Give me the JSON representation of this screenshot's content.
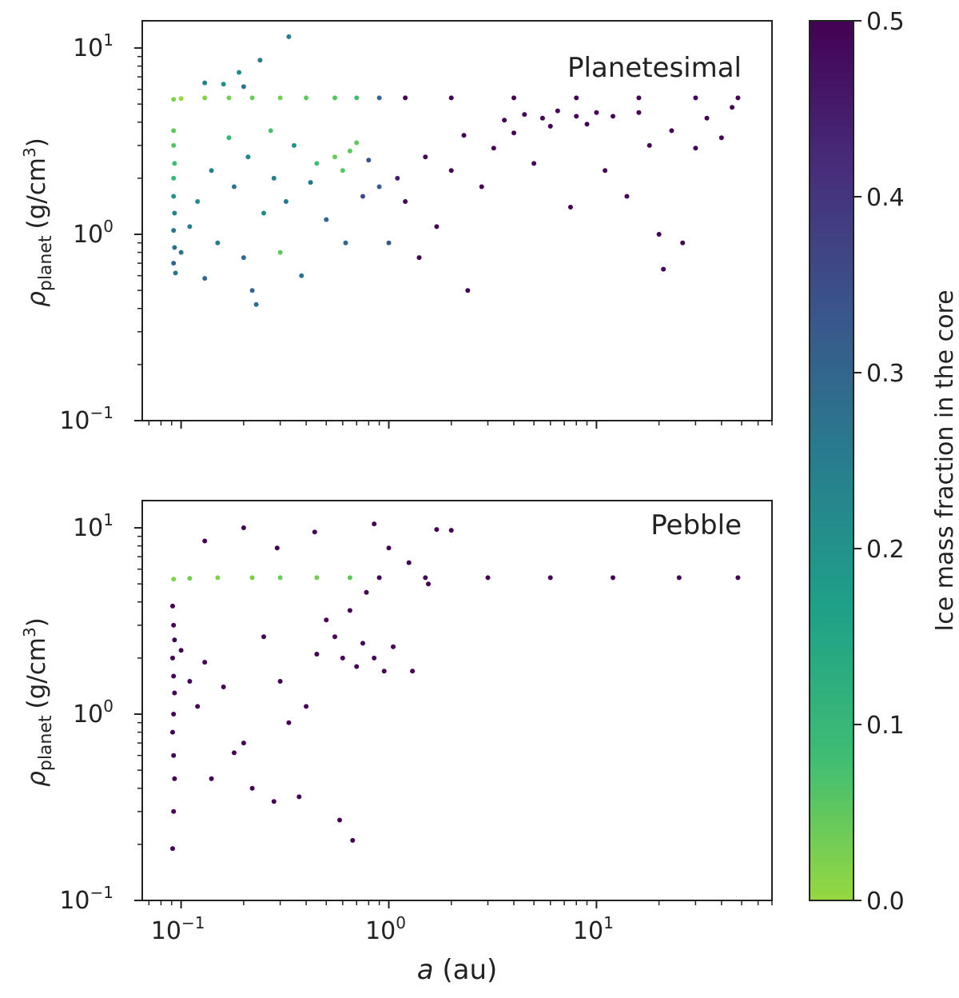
{
  "figure": {
    "shared_xlabel_italic": "a",
    "shared_xlabel_rest": " (au)",
    "colorbar": {
      "label": "Ice mass fraction in the core",
      "range": [
        0.0,
        0.5
      ],
      "ticks": [
        "0.0",
        "0.1",
        "0.2",
        "0.3",
        "0.4",
        "0.5"
      ],
      "tick_values": [
        0.0,
        0.1,
        0.2,
        0.3,
        0.4,
        0.5
      ],
      "colormap": [
        "#95d840",
        "#3dbc74",
        "#1fa088",
        "#287d8e",
        "#39568c",
        "#472d7b",
        "#440154"
      ]
    }
  },
  "chart_data": [
    {
      "type": "scatter",
      "panel": "top",
      "annotation": "Planetesimal",
      "ylabel_symbol": "ρ",
      "ylabel_sub": "planet",
      "ylabel_unit": "(g/cm",
      "ylabel_sup": "3",
      "ylabel_close": ")",
      "xscale": "log",
      "yscale": "log",
      "xlim": [
        0.065,
        70
      ],
      "ylim": [
        0.1,
        14
      ],
      "yticks": [
        {
          "base": "10",
          "exp": "1",
          "value": 10
        },
        {
          "base": "10",
          "exp": "0",
          "value": 1
        },
        {
          "base": "10",
          "exp": "−1",
          "value": 0.1
        }
      ],
      "xticks_labeled": false,
      "points": [
        {
          "a": 0.092,
          "rho": 5.3,
          "ice": 0.02
        },
        {
          "a": 0.1,
          "rho": 5.35,
          "ice": 0.0
        },
        {
          "a": 0.13,
          "rho": 5.4,
          "ice": 0.02
        },
        {
          "a": 0.17,
          "rho": 5.4,
          "ice": 0.03
        },
        {
          "a": 0.22,
          "rho": 5.4,
          "ice": 0.04
        },
        {
          "a": 0.3,
          "rho": 5.4,
          "ice": 0.03
        },
        {
          "a": 0.4,
          "rho": 5.4,
          "ice": 0.05
        },
        {
          "a": 0.55,
          "rho": 5.4,
          "ice": 0.06
        },
        {
          "a": 0.7,
          "rho": 5.4,
          "ice": 0.08
        },
        {
          "a": 0.9,
          "rho": 5.4,
          "ice": 0.3
        },
        {
          "a": 1.2,
          "rho": 5.4,
          "ice": 0.5
        },
        {
          "a": 2.0,
          "rho": 5.4,
          "ice": 0.5
        },
        {
          "a": 4.0,
          "rho": 5.4,
          "ice": 0.5
        },
        {
          "a": 8.0,
          "rho": 5.4,
          "ice": 0.5
        },
        {
          "a": 16.0,
          "rho": 5.4,
          "ice": 0.5
        },
        {
          "a": 30.0,
          "rho": 5.4,
          "ice": 0.5
        },
        {
          "a": 48.0,
          "rho": 5.4,
          "ice": 0.5
        },
        {
          "a": 0.33,
          "rho": 11.5,
          "ice": 0.25
        },
        {
          "a": 0.24,
          "rho": 8.6,
          "ice": 0.26
        },
        {
          "a": 0.19,
          "rho": 7.4,
          "ice": 0.22
        },
        {
          "a": 0.13,
          "rho": 6.5,
          "ice": 0.24
        },
        {
          "a": 0.16,
          "rho": 6.4,
          "ice": 0.21
        },
        {
          "a": 0.2,
          "rho": 6.2,
          "ice": 0.27
        },
        {
          "a": 0.092,
          "rho": 3.6,
          "ice": 0.05
        },
        {
          "a": 0.092,
          "rho": 3.0,
          "ice": 0.06
        },
        {
          "a": 0.093,
          "rho": 2.4,
          "ice": 0.08
        },
        {
          "a": 0.092,
          "rho": 2.0,
          "ice": 0.1
        },
        {
          "a": 0.092,
          "rho": 1.6,
          "ice": 0.2
        },
        {
          "a": 0.093,
          "rho": 1.3,
          "ice": 0.24
        },
        {
          "a": 0.092,
          "rho": 1.05,
          "ice": 0.27
        },
        {
          "a": 0.093,
          "rho": 0.85,
          "ice": 0.28
        },
        {
          "a": 0.092,
          "rho": 0.7,
          "ice": 0.3
        },
        {
          "a": 0.094,
          "rho": 0.62,
          "ice": 0.28
        },
        {
          "a": 0.1,
          "rho": 0.8,
          "ice": 0.27
        },
        {
          "a": 0.11,
          "rho": 1.1,
          "ice": 0.25
        },
        {
          "a": 0.12,
          "rho": 1.5,
          "ice": 0.22
        },
        {
          "a": 0.13,
          "rho": 0.58,
          "ice": 0.3
        },
        {
          "a": 0.14,
          "rho": 2.2,
          "ice": 0.24
        },
        {
          "a": 0.15,
          "rho": 0.9,
          "ice": 0.26
        },
        {
          "a": 0.17,
          "rho": 3.3,
          "ice": 0.1
        },
        {
          "a": 0.18,
          "rho": 1.8,
          "ice": 0.27
        },
        {
          "a": 0.2,
          "rho": 0.75,
          "ice": 0.3
        },
        {
          "a": 0.21,
          "rho": 2.6,
          "ice": 0.23
        },
        {
          "a": 0.22,
          "rho": 0.5,
          "ice": 0.3
        },
        {
          "a": 0.23,
          "rho": 0.42,
          "ice": 0.28
        },
        {
          "a": 0.25,
          "rho": 1.3,
          "ice": 0.22
        },
        {
          "a": 0.27,
          "rho": 3.6,
          "ice": 0.07
        },
        {
          "a": 0.28,
          "rho": 2.0,
          "ice": 0.25
        },
        {
          "a": 0.3,
          "rho": 0.8,
          "ice": 0.05
        },
        {
          "a": 0.32,
          "rho": 1.5,
          "ice": 0.27
        },
        {
          "a": 0.35,
          "rho": 3.0,
          "ice": 0.2
        },
        {
          "a": 0.38,
          "rho": 0.6,
          "ice": 0.27
        },
        {
          "a": 0.42,
          "rho": 1.9,
          "ice": 0.26
        },
        {
          "a": 0.45,
          "rho": 2.4,
          "ice": 0.08
        },
        {
          "a": 0.5,
          "rho": 1.2,
          "ice": 0.3
        },
        {
          "a": 0.55,
          "rho": 2.6,
          "ice": 0.04
        },
        {
          "a": 0.6,
          "rho": 2.2,
          "ice": 0.06
        },
        {
          "a": 0.65,
          "rho": 2.8,
          "ice": 0.05
        },
        {
          "a": 0.7,
          "rho": 3.1,
          "ice": 0.05
        },
        {
          "a": 0.62,
          "rho": 0.9,
          "ice": 0.3
        },
        {
          "a": 0.75,
          "rho": 1.6,
          "ice": 0.36
        },
        {
          "a": 0.8,
          "rho": 2.5,
          "ice": 0.34
        },
        {
          "a": 0.9,
          "rho": 1.8,
          "ice": 0.32
        },
        {
          "a": 1.0,
          "rho": 0.9,
          "ice": 0.33
        },
        {
          "a": 1.1,
          "rho": 2.0,
          "ice": 0.45
        },
        {
          "a": 1.2,
          "rho": 1.5,
          "ice": 0.5
        },
        {
          "a": 1.4,
          "rho": 0.75,
          "ice": 0.5
        },
        {
          "a": 1.5,
          "rho": 2.6,
          "ice": 0.5
        },
        {
          "a": 1.7,
          "rho": 1.1,
          "ice": 0.5
        },
        {
          "a": 2.0,
          "rho": 2.2,
          "ice": 0.5
        },
        {
          "a": 2.3,
          "rho": 3.4,
          "ice": 0.5
        },
        {
          "a": 2.4,
          "rho": 0.5,
          "ice": 0.5
        },
        {
          "a": 2.8,
          "rho": 1.8,
          "ice": 0.5
        },
        {
          "a": 3.2,
          "rho": 2.9,
          "ice": 0.5
        },
        {
          "a": 3.6,
          "rho": 4.1,
          "ice": 0.5
        },
        {
          "a": 4.0,
          "rho": 3.5,
          "ice": 0.5
        },
        {
          "a": 4.5,
          "rho": 4.4,
          "ice": 0.5
        },
        {
          "a": 5.0,
          "rho": 2.4,
          "ice": 0.5
        },
        {
          "a": 5.5,
          "rho": 4.2,
          "ice": 0.5
        },
        {
          "a": 6.0,
          "rho": 3.8,
          "ice": 0.5
        },
        {
          "a": 6.5,
          "rho": 4.6,
          "ice": 0.5
        },
        {
          "a": 7.5,
          "rho": 1.4,
          "ice": 0.5
        },
        {
          "a": 8.0,
          "rho": 4.3,
          "ice": 0.5
        },
        {
          "a": 9.0,
          "rho": 3.9,
          "ice": 0.5
        },
        {
          "a": 10.0,
          "rho": 4.5,
          "ice": 0.5
        },
        {
          "a": 11.0,
          "rho": 2.2,
          "ice": 0.5
        },
        {
          "a": 12.0,
          "rho": 4.3,
          "ice": 0.5
        },
        {
          "a": 14.0,
          "rho": 1.6,
          "ice": 0.5
        },
        {
          "a": 16.0,
          "rho": 4.5,
          "ice": 0.5
        },
        {
          "a": 18.0,
          "rho": 3.0,
          "ice": 0.5
        },
        {
          "a": 20.0,
          "rho": 1.0,
          "ice": 0.5
        },
        {
          "a": 21.0,
          "rho": 0.65,
          "ice": 0.5
        },
        {
          "a": 23.0,
          "rho": 3.6,
          "ice": 0.5
        },
        {
          "a": 26.0,
          "rho": 0.9,
          "ice": 0.5
        },
        {
          "a": 30.0,
          "rho": 2.9,
          "ice": 0.5
        },
        {
          "a": 34.0,
          "rho": 4.2,
          "ice": 0.5
        },
        {
          "a": 40.0,
          "rho": 3.3,
          "ice": 0.5
        },
        {
          "a": 45.0,
          "rho": 4.8,
          "ice": 0.5
        }
      ]
    },
    {
      "type": "scatter",
      "panel": "bottom",
      "annotation": "Pebble",
      "ylabel_symbol": "ρ",
      "ylabel_sub": "planet",
      "ylabel_unit": "(g/cm",
      "ylabel_sup": "3",
      "ylabel_close": ")",
      "xscale": "log",
      "yscale": "log",
      "xlim": [
        0.065,
        70
      ],
      "ylim": [
        0.1,
        14
      ],
      "yticks": [
        {
          "base": "10",
          "exp": "1",
          "value": 10
        },
        {
          "base": "10",
          "exp": "0",
          "value": 1
        },
        {
          "base": "10",
          "exp": "−1",
          "value": 0.1
        }
      ],
      "xticks": [
        {
          "base": "10",
          "exp": "−1",
          "value": 0.1
        },
        {
          "base": "10",
          "exp": "0",
          "value": 1
        },
        {
          "base": "10",
          "exp": "1",
          "value": 10
        }
      ],
      "points": [
        {
          "a": 0.092,
          "rho": 5.3,
          "ice": 0.02
        },
        {
          "a": 0.11,
          "rho": 5.35,
          "ice": 0.03
        },
        {
          "a": 0.15,
          "rho": 5.4,
          "ice": 0.02
        },
        {
          "a": 0.22,
          "rho": 5.4,
          "ice": 0.03
        },
        {
          "a": 0.3,
          "rho": 5.4,
          "ice": 0.04
        },
        {
          "a": 0.45,
          "rho": 5.4,
          "ice": 0.03
        },
        {
          "a": 0.65,
          "rho": 5.4,
          "ice": 0.05
        },
        {
          "a": 0.9,
          "rho": 5.4,
          "ice": 0.5
        },
        {
          "a": 1.5,
          "rho": 5.4,
          "ice": 0.5
        },
        {
          "a": 3.0,
          "rho": 5.4,
          "ice": 0.5
        },
        {
          "a": 6.0,
          "rho": 5.4,
          "ice": 0.5
        },
        {
          "a": 12.0,
          "rho": 5.4,
          "ice": 0.5
        },
        {
          "a": 25.0,
          "rho": 5.4,
          "ice": 0.5
        },
        {
          "a": 48.0,
          "rho": 5.4,
          "ice": 0.5
        },
        {
          "a": 0.13,
          "rho": 8.5,
          "ice": 0.5
        },
        {
          "a": 0.2,
          "rho": 10.0,
          "ice": 0.5
        },
        {
          "a": 0.29,
          "rho": 7.8,
          "ice": 0.5
        },
        {
          "a": 0.44,
          "rho": 9.5,
          "ice": 0.5
        },
        {
          "a": 0.85,
          "rho": 10.5,
          "ice": 0.5
        },
        {
          "a": 1.0,
          "rho": 7.8,
          "ice": 0.5
        },
        {
          "a": 1.25,
          "rho": 6.5,
          "ice": 0.5
        },
        {
          "a": 1.7,
          "rho": 9.8,
          "ice": 0.5
        },
        {
          "a": 2.0,
          "rho": 9.7,
          "ice": 0.5
        },
        {
          "a": 0.091,
          "rho": 3.8,
          "ice": 0.5
        },
        {
          "a": 0.092,
          "rho": 3.0,
          "ice": 0.5
        },
        {
          "a": 0.093,
          "rho": 2.5,
          "ice": 0.5
        },
        {
          "a": 0.091,
          "rho": 2.0,
          "ice": 0.5
        },
        {
          "a": 0.092,
          "rho": 1.6,
          "ice": 0.5
        },
        {
          "a": 0.093,
          "rho": 1.3,
          "ice": 0.5
        },
        {
          "a": 0.092,
          "rho": 1.0,
          "ice": 0.5
        },
        {
          "a": 0.091,
          "rho": 0.8,
          "ice": 0.5
        },
        {
          "a": 0.092,
          "rho": 0.6,
          "ice": 0.5
        },
        {
          "a": 0.093,
          "rho": 0.45,
          "ice": 0.5
        },
        {
          "a": 0.092,
          "rho": 0.3,
          "ice": 0.5
        },
        {
          "a": 0.091,
          "rho": 0.19,
          "ice": 0.5
        },
        {
          "a": 0.1,
          "rho": 2.2,
          "ice": 0.5
        },
        {
          "a": 0.11,
          "rho": 1.5,
          "ice": 0.5
        },
        {
          "a": 0.12,
          "rho": 1.1,
          "ice": 0.5
        },
        {
          "a": 0.13,
          "rho": 1.9,
          "ice": 0.5
        },
        {
          "a": 0.14,
          "rho": 0.45,
          "ice": 0.5
        },
        {
          "a": 0.16,
          "rho": 1.4,
          "ice": 0.5
        },
        {
          "a": 0.18,
          "rho": 0.62,
          "ice": 0.5
        },
        {
          "a": 0.2,
          "rho": 0.7,
          "ice": 0.5
        },
        {
          "a": 0.22,
          "rho": 0.4,
          "ice": 0.5
        },
        {
          "a": 0.25,
          "rho": 2.6,
          "ice": 0.5
        },
        {
          "a": 0.28,
          "rho": 0.34,
          "ice": 0.5
        },
        {
          "a": 0.3,
          "rho": 1.5,
          "ice": 0.5
        },
        {
          "a": 0.33,
          "rho": 0.9,
          "ice": 0.5
        },
        {
          "a": 0.37,
          "rho": 0.36,
          "ice": 0.5
        },
        {
          "a": 0.4,
          "rho": 1.1,
          "ice": 0.5
        },
        {
          "a": 0.45,
          "rho": 2.1,
          "ice": 0.5
        },
        {
          "a": 0.5,
          "rho": 3.2,
          "ice": 0.5
        },
        {
          "a": 0.55,
          "rho": 2.6,
          "ice": 0.5
        },
        {
          "a": 0.58,
          "rho": 0.27,
          "ice": 0.5
        },
        {
          "a": 0.6,
          "rho": 2.0,
          "ice": 0.5
        },
        {
          "a": 0.65,
          "rho": 3.6,
          "ice": 0.5
        },
        {
          "a": 0.67,
          "rho": 0.21,
          "ice": 0.5
        },
        {
          "a": 0.7,
          "rho": 1.8,
          "ice": 0.5
        },
        {
          "a": 0.75,
          "rho": 2.4,
          "ice": 0.5
        },
        {
          "a": 0.78,
          "rho": 4.5,
          "ice": 0.5
        },
        {
          "a": 0.85,
          "rho": 2.0,
          "ice": 0.5
        },
        {
          "a": 0.95,
          "rho": 1.7,
          "ice": 0.5
        },
        {
          "a": 1.05,
          "rho": 2.3,
          "ice": 0.5
        },
        {
          "a": 1.3,
          "rho": 1.7,
          "ice": 0.5
        },
        {
          "a": 1.55,
          "rho": 5.0,
          "ice": 0.5
        }
      ]
    }
  ]
}
